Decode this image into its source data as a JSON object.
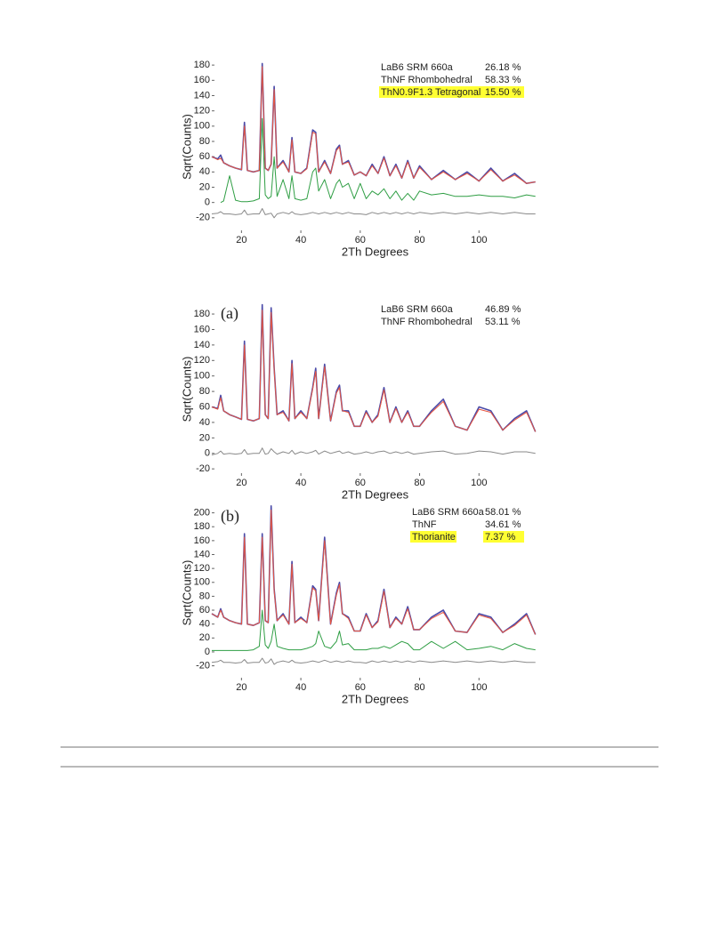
{
  "chart_data": [
    {
      "type": "line",
      "y_label": "Sqrt(Counts)",
      "x_label": "2Th Degrees",
      "xlim": [
        10,
        120
      ],
      "ylim": [
        -40,
        186
      ],
      "xticks": [
        20,
        40,
        60,
        80,
        100
      ],
      "yticks": [
        -20,
        0,
        20,
        40,
        60,
        80,
        100,
        120,
        140,
        160,
        180
      ],
      "x": [
        10,
        12,
        13,
        14,
        16,
        18,
        20,
        21,
        22,
        24,
        26,
        27,
        28,
        29,
        30,
        31,
        32,
        34,
        36,
        37,
        38,
        40,
        42,
        44,
        45,
        46,
        48,
        50,
        52,
        53,
        54,
        56,
        58,
        60,
        62,
        64,
        66,
        68,
        70,
        72,
        74,
        76,
        78,
        80,
        84,
        88,
        92,
        96,
        100,
        104,
        108,
        112,
        116,
        119
      ],
      "series": [
        {
          "color": "#4a4aa8",
          "values": [
            60,
            57,
            62,
            52,
            48,
            45,
            43,
            105,
            42,
            40,
            42,
            182,
            45,
            42,
            50,
            152,
            45,
            55,
            40,
            85,
            40,
            38,
            45,
            95,
            92,
            40,
            55,
            38,
            70,
            75,
            50,
            55,
            36,
            40,
            35,
            50,
            38,
            60,
            35,
            50,
            32,
            55,
            32,
            48,
            30,
            42,
            30,
            40,
            28,
            45,
            28,
            38,
            25,
            27
          ]
        },
        {
          "color": "#e8553f",
          "values": [
            60,
            56,
            58,
            52,
            48,
            45,
            43,
            100,
            42,
            40,
            42,
            178,
            45,
            42,
            50,
            148,
            45,
            53,
            40,
            82,
            40,
            38,
            44,
            92,
            90,
            40,
            53,
            38,
            68,
            73,
            50,
            53,
            36,
            40,
            35,
            48,
            38,
            58,
            35,
            48,
            32,
            53,
            32,
            46,
            30,
            40,
            30,
            38,
            28,
            43,
            28,
            36,
            25,
            27
          ]
        },
        {
          "color": "#8a8a8a",
          "values": [
            -15,
            -14,
            -12,
            -15,
            -15,
            -16,
            -15,
            -10,
            -16,
            -15,
            -15,
            -8,
            -16,
            -15,
            -14,
            -20,
            -15,
            -13,
            -15,
            -12,
            -15,
            -16,
            -15,
            -13,
            -14,
            -15,
            -13,
            -15,
            -13,
            -14,
            -15,
            -13,
            -15,
            -15,
            -16,
            -13,
            -15,
            -13,
            -15,
            -13,
            -15,
            -13,
            -15,
            -13,
            -15,
            -13,
            -15,
            -13,
            -15,
            -13,
            -15,
            -13,
            -15,
            -15
          ]
        },
        {
          "color": "#2f9e44",
          "values": [
            null,
            null,
            0,
            2,
            35,
            3,
            1,
            1,
            1,
            2,
            5,
            110,
            10,
            5,
            8,
            60,
            8,
            30,
            5,
            35,
            5,
            3,
            5,
            40,
            45,
            15,
            30,
            5,
            25,
            30,
            20,
            25,
            5,
            25,
            5,
            15,
            10,
            18,
            5,
            15,
            3,
            12,
            3,
            15,
            10,
            12,
            8,
            8,
            10,
            8,
            8,
            6,
            10,
            8
          ]
        }
      ],
      "phases": [
        {
          "name": "LaB6 SRM 660a",
          "value": 26.18,
          "label": "26.18 %",
          "color": "#4455bb",
          "highlight": false
        },
        {
          "name": "ThNF Rhombohedral",
          "value": 58.33,
          "label": "58.33 %",
          "color": "#222222",
          "highlight": false
        },
        {
          "name": "ThN0.9F1.3 Tetragonal",
          "value": 15.5,
          "label": "15.50 %",
          "color": "#222222",
          "highlight": true
        }
      ]
    },
    {
      "type": "line",
      "panel_label": "(a)",
      "y_label": "Sqrt(Counts)",
      "x_label": "2Th Degrees",
      "xlim": [
        10,
        120
      ],
      "ylim": [
        -29,
        195
      ],
      "xticks": [
        20,
        40,
        60,
        80,
        100
      ],
      "yticks": [
        -20,
        0,
        20,
        40,
        60,
        80,
        100,
        120,
        140,
        160,
        180
      ],
      "x": [
        10,
        12,
        13,
        14,
        16,
        18,
        20,
        21,
        22,
        24,
        26,
        27,
        28,
        29,
        30,
        31,
        32,
        34,
        36,
        37,
        38,
        40,
        42,
        44,
        45,
        46,
        48,
        50,
        52,
        53,
        54,
        56,
        58,
        60,
        62,
        64,
        66,
        68,
        70,
        72,
        74,
        76,
        78,
        80,
        84,
        88,
        92,
        96,
        100,
        104,
        108,
        112,
        116,
        119
      ],
      "series": [
        {
          "color": "#4a4aa8",
          "values": [
            60,
            58,
            75,
            55,
            50,
            47,
            44,
            145,
            44,
            42,
            45,
            192,
            50,
            45,
            188,
            110,
            50,
            55,
            42,
            120,
            45,
            55,
            45,
            85,
            110,
            45,
            115,
            42,
            80,
            88,
            55,
            55,
            35,
            35,
            55,
            40,
            50,
            85,
            40,
            60,
            40,
            55,
            35,
            35,
            55,
            70,
            35,
            30,
            60,
            55,
            30,
            45,
            55,
            28
          ]
        },
        {
          "color": "#e8553f",
          "values": [
            60,
            57,
            72,
            55,
            50,
            47,
            44,
            140,
            44,
            42,
            45,
            185,
            50,
            45,
            182,
            108,
            50,
            53,
            42,
            116,
            45,
            53,
            45,
            83,
            106,
            45,
            112,
            42,
            78,
            85,
            55,
            53,
            35,
            35,
            53,
            40,
            48,
            82,
            40,
            58,
            40,
            53,
            35,
            35,
            53,
            67,
            35,
            30,
            57,
            53,
            30,
            43,
            53,
            28
          ]
        },
        {
          "color": "#8a8a8a",
          "values": [
            -2,
            0,
            3,
            -1,
            0,
            -1,
            0,
            5,
            -1,
            0,
            0,
            7,
            -1,
            0,
            6,
            2,
            -1,
            2,
            0,
            4,
            -1,
            2,
            0,
            2,
            4,
            -1,
            3,
            0,
            2,
            3,
            0,
            2,
            -1,
            0,
            2,
            0,
            2,
            3,
            0,
            2,
            0,
            2,
            -1,
            0,
            2,
            3,
            -1,
            0,
            3,
            2,
            -1,
            2,
            2,
            0
          ]
        }
      ],
      "phases": [
        {
          "name": "LaB6 SRM 660a",
          "value": 46.89,
          "label": "46.89 %",
          "color": "#4455bb",
          "highlight": false
        },
        {
          "name": "ThNF Rhombohedral",
          "value": 53.11,
          "label": "53.11 %",
          "color": "#222222",
          "highlight": false
        }
      ]
    },
    {
      "type": "line",
      "panel_label": "(b)",
      "y_label": "Sqrt(Counts)",
      "x_label": "2Th Degrees",
      "xlim": [
        10,
        120
      ],
      "ylim": [
        -41,
        211
      ],
      "xticks": [
        20,
        40,
        60,
        80,
        100
      ],
      "yticks": [
        -20,
        0,
        20,
        40,
        60,
        80,
        100,
        120,
        140,
        160,
        180,
        200
      ],
      "x": [
        10,
        12,
        13,
        14,
        16,
        18,
        20,
        21,
        22,
        24,
        26,
        27,
        28,
        29,
        30,
        31,
        32,
        34,
        36,
        37,
        38,
        40,
        42,
        44,
        45,
        46,
        48,
        50,
        52,
        53,
        54,
        56,
        58,
        60,
        62,
        64,
        66,
        68,
        70,
        72,
        74,
        76,
        78,
        80,
        84,
        88,
        92,
        96,
        100,
        104,
        108,
        112,
        116,
        119
      ],
      "series": [
        {
          "color": "#4a4aa8",
          "values": [
            55,
            50,
            62,
            50,
            45,
            42,
            40,
            170,
            40,
            38,
            42,
            170,
            45,
            42,
            210,
            90,
            45,
            55,
            40,
            130,
            42,
            50,
            42,
            95,
            90,
            45,
            165,
            40,
            85,
            100,
            55,
            50,
            30,
            30,
            55,
            35,
            45,
            90,
            35,
            50,
            40,
            65,
            32,
            32,
            50,
            60,
            30,
            28,
            55,
            50,
            28,
            40,
            55,
            25
          ]
        },
        {
          "color": "#e8553f",
          "values": [
            55,
            50,
            60,
            50,
            45,
            42,
            40,
            165,
            40,
            38,
            42,
            165,
            45,
            42,
            204,
            88,
            45,
            53,
            40,
            126,
            42,
            48,
            42,
            92,
            88,
            45,
            160,
            40,
            82,
            97,
            55,
            48,
            30,
            30,
            53,
            35,
            43,
            87,
            35,
            48,
            40,
            62,
            32,
            32,
            48,
            57,
            30,
            28,
            53,
            48,
            28,
            38,
            53,
            25
          ]
        },
        {
          "color": "#8a8a8a",
          "values": [
            -15,
            -14,
            -12,
            -15,
            -15,
            -16,
            -15,
            -11,
            -16,
            -15,
            -15,
            -9,
            -16,
            -15,
            -10,
            -18,
            -15,
            -13,
            -15,
            -12,
            -15,
            -16,
            -15,
            -13,
            -14,
            -15,
            -12,
            -15,
            -13,
            -14,
            -15,
            -13,
            -15,
            -15,
            -16,
            -13,
            -15,
            -13,
            -15,
            -13,
            -15,
            -13,
            -15,
            -13,
            -15,
            -13,
            -15,
            -13,
            -15,
            -13,
            -15,
            -13,
            -15,
            -15
          ]
        },
        {
          "color": "#2f9e44",
          "values": [
            2,
            2,
            2,
            2,
            2,
            2,
            2,
            2,
            2,
            3,
            8,
            60,
            10,
            5,
            15,
            40,
            8,
            5,
            3,
            3,
            3,
            3,
            5,
            8,
            12,
            30,
            8,
            5,
            15,
            30,
            10,
            12,
            3,
            3,
            3,
            5,
            5,
            8,
            5,
            10,
            15,
            12,
            3,
            3,
            15,
            5,
            15,
            3,
            5,
            8,
            3,
            12,
            5,
            3
          ]
        }
      ],
      "phases": [
        {
          "name": "LaB6 SRM 660a",
          "value": 58.01,
          "label": "58.01 %",
          "color": "#4455bb",
          "highlight": false
        },
        {
          "name": "ThNF",
          "value": 34.61,
          "label": "34.61 %",
          "color": "#222222",
          "highlight": false
        },
        {
          "name": "Thorianite",
          "value": 7.37,
          "label": "7.37 %",
          "color": "#222222",
          "highlight": true
        }
      ]
    }
  ]
}
